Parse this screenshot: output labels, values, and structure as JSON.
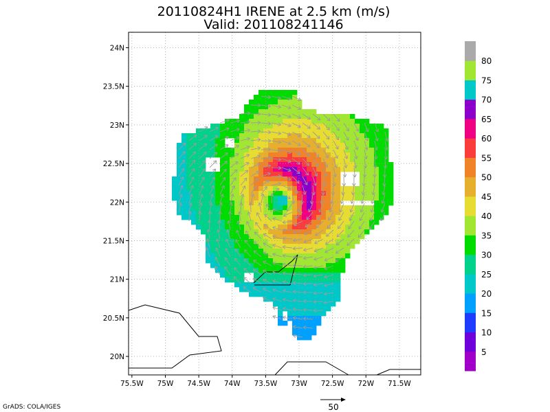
{
  "title_line1": "20110824H1 IRENE at 2.5 km (m/s)",
  "title_line2": "Valid: 201108241146",
  "credit": "GrADS: COLA/IGES",
  "vector_ref_label": "50",
  "chart_data": {
    "type": "heatmap",
    "title": "20110824H1 IRENE at 2.5 km (m/s)",
    "subtitle": "Valid: 201108241146",
    "x_axis": {
      "ticks": [
        -75.5,
        -75,
        -74.5,
        -74,
        -73.5,
        -73,
        -72.5,
        -72,
        -71.5
      ],
      "tick_labels": [
        "75.5W",
        "75W",
        "74.5W",
        "74W",
        "73.5W",
        "73W",
        "72.5W",
        "72W",
        "71.5W"
      ],
      "range": [
        -75.55,
        -71.18
      ]
    },
    "y_axis": {
      "ticks": [
        20,
        20.5,
        21,
        21.5,
        22,
        22.5,
        23,
        23.5,
        24
      ],
      "tick_labels": [
        "20N",
        "20.5N",
        "21N",
        "21.5N",
        "22N",
        "22.5N",
        "23N",
        "23.5N",
        "24N"
      ],
      "range": [
        19.76,
        24.2
      ]
    },
    "grid": true,
    "legend": "right",
    "colorbar": {
      "levels": [
        5,
        10,
        15,
        20,
        25,
        30,
        35,
        40,
        45,
        50,
        55,
        60,
        65,
        70,
        75,
        80
      ],
      "colors": [
        "#a000c8",
        "#6e00dc",
        "#1e3cff",
        "#00a0ff",
        "#00c8c8",
        "#00d28c",
        "#00dc00",
        "#a0e632",
        "#e6dc32",
        "#e6af2d",
        "#f08228",
        "#fa3c3c",
        "#f00082",
        "#8c00cc",
        "#00c8c8",
        "#a0e632",
        "#aaaaaa"
      ]
    },
    "storm_center": {
      "lon": -73.27,
      "lat": 22.02
    },
    "max_wind_approx": {
      "value": 60,
      "lon": -73.05,
      "lat": 22.1
    },
    "vector_reference_speed": 50
  }
}
